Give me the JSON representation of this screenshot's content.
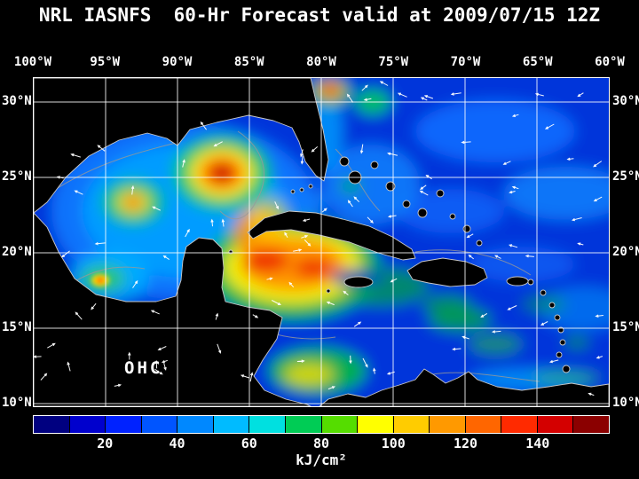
{
  "title": "NRL IASNFS  60-Hr Forecast valid at 2009/07/15 12Z",
  "map": {
    "label": "OHC",
    "lon_labels": [
      "100°W",
      "95°W",
      "90°W",
      "85°W",
      "80°W",
      "75°W",
      "70°W",
      "65°W",
      "60°W"
    ],
    "lat_labels": [
      "30°N",
      "25°N",
      "20°N",
      "15°N",
      "10°N"
    ]
  },
  "colorbar": {
    "units": "kJ/cm²",
    "min": 0,
    "max": 160,
    "tick_labels": [
      "20",
      "40",
      "60",
      "80",
      "100",
      "120",
      "140"
    ],
    "tick_values": [
      20,
      40,
      60,
      80,
      100,
      120,
      140
    ],
    "colors": [
      "#000080",
      "#0000cd",
      "#0022ff",
      "#0055ff",
      "#0088ff",
      "#00bbff",
      "#00e0e0",
      "#00cc55",
      "#55dd00",
      "#ffff00",
      "#ffcc00",
      "#ff9900",
      "#ff6600",
      "#ff2a00",
      "#d40000",
      "#8b0000"
    ]
  },
  "chart_data": {
    "type": "heatmap",
    "title": "NRL IASNFS 60-Hr Forecast valid at 2009/07/15 12Z",
    "model": "NRL IASNFS",
    "forecast_hours": 60,
    "valid_time": "2009/07/15 12Z",
    "variable": "Ocean Heat Content (OHC)",
    "units": "kJ/cm²",
    "lon_range": [
      "100°W",
      "60°W"
    ],
    "lat_range": [
      "10°N",
      "30°N"
    ],
    "grid_interval_deg": 5,
    "colorbar_range": [
      0,
      160
    ],
    "colorbar_ticks": [
      20,
      40,
      60,
      80,
      100,
      120,
      140
    ],
    "features": [
      {
        "name": "Loop Current warm eddy, central Gulf of Mexico",
        "approx_lon": "87°W",
        "approx_lat": "26°N",
        "value_kj_cm2": 150
      },
      {
        "name": "Western Gulf of Mexico warm eddy",
        "approx_lon": "93°W",
        "approx_lat": "24.5°N",
        "value_kj_cm2": 120
      },
      {
        "name": "Northwest Caribbean warm pool",
        "approx_lon": "85-79°W",
        "approx_lat": "18-21°N",
        "value_kj_cm2": 130
      },
      {
        "name": "Bay of Campeche warm spot",
        "approx_lon": "95.5°W",
        "approx_lat": "19.5°N",
        "value_kj_cm2": 100
      },
      {
        "name": "Small warm anomaly east of north Florida",
        "approx_lon": "79.5°W",
        "approx_lat": "30.5°N",
        "value_kj_cm2": 110
      },
      {
        "name": "Atlantic / eastern Caribbean background",
        "value_kj_cm2": 40
      }
    ],
    "overlays": [
      "white lat/lon grid every 5 degrees",
      "gray bathymetry contours",
      "black land mask",
      "white surface-current vector arrows"
    ]
  }
}
